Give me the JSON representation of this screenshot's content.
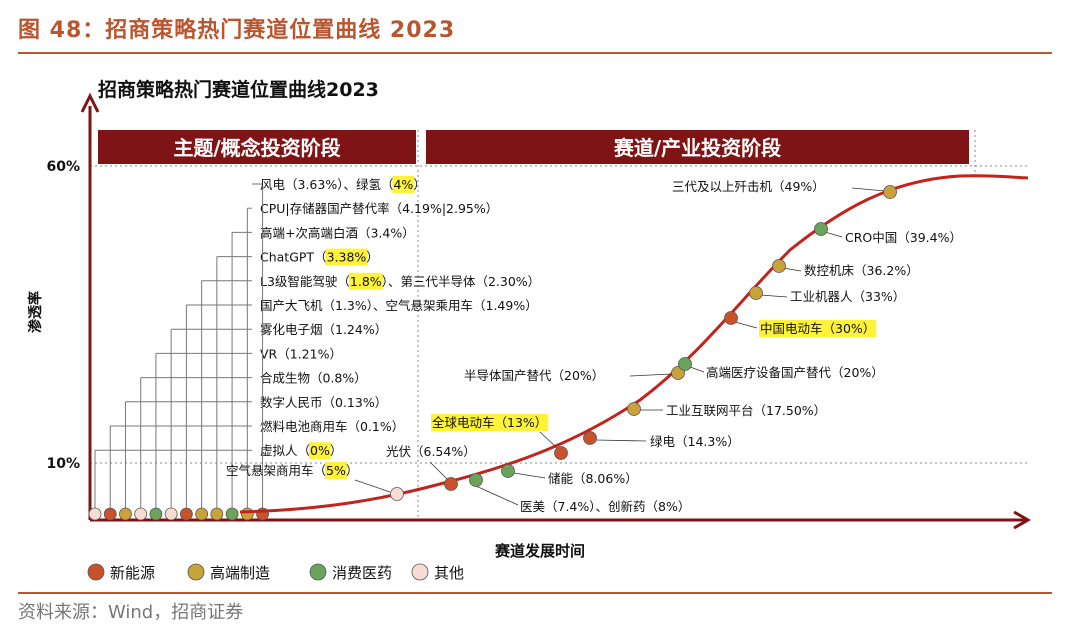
{
  "figure_title": "图 48：招商策略热门赛道位置曲线 2023",
  "source": "资料来源：Wind，招商证券",
  "colors": {
    "brand": "#b9562f",
    "banner": "#7f1416",
    "axis": "#7f1416",
    "curve": "#c2241d",
    "highlight": "#fff23a",
    "new_energy": "#c8532a",
    "high_end": "#c9a33a",
    "consumer_med": "#6aa35a",
    "other": "#f7dcd6"
  },
  "chart_data": {
    "type": "scatter",
    "title": "招商策略热门赛道位置曲线2023",
    "xlabel": "赛道发展时间",
    "ylabel": "渗透率",
    "y_ticks": [
      "60%",
      "10%"
    ],
    "phases": [
      "主题/概念投资阶段",
      "赛道/产业投资阶段"
    ],
    "legend": [
      {
        "key": "new_energy",
        "label": "新能源"
      },
      {
        "key": "high_end",
        "label": "高端制造"
      },
      {
        "key": "consumer_med",
        "label": "消费医药"
      },
      {
        "key": "other",
        "label": "其他"
      }
    ],
    "theme_items": [
      {
        "label": "风电（3.63%）、绿氢（",
        "hl": "4%",
        "after": "）",
        "cat": "new_energy"
      },
      {
        "label": "CPU|存储器国产替代率（4.19%|2.95%）",
        "hl": "",
        "after": "",
        "cat": "high_end"
      },
      {
        "label": "高端+次高端白酒（3.4%）",
        "hl": "",
        "after": "",
        "cat": "consumer_med"
      },
      {
        "label": "ChatGPT（",
        "hl": "3.38%",
        "after": "）",
        "cat": "high_end"
      },
      {
        "label": "L3级智能驾驶（",
        "hl": "1.8%",
        "after": "）、第三代半导体（2.30%）",
        "cat": "high_end"
      },
      {
        "label": "国产大飞机（1.3%）、空气悬架乘用车（1.49%）",
        "hl": "",
        "after": "",
        "cat": "new_energy"
      },
      {
        "label": "雾化电子烟（1.24%）",
        "hl": "",
        "after": "",
        "cat": "other"
      },
      {
        "label": "VR（1.21%）",
        "hl": "",
        "after": "",
        "cat": "consumer_med"
      },
      {
        "label": "合成生物（0.8%）",
        "hl": "",
        "after": "",
        "cat": "other"
      },
      {
        "label": "数字人民币（0.13%）",
        "hl": "",
        "after": "",
        "cat": "high_end"
      },
      {
        "label": "燃料电池商用车（0.1%）",
        "hl": "",
        "after": "",
        "cat": "new_energy"
      },
      {
        "label": "虚拟人（",
        "hl": "0%",
        "after": "）",
        "cat": "other"
      }
    ],
    "curve_points": [
      {
        "label": "空气悬架商用车（",
        "hl": "5%",
        "after": "）",
        "cat": "other"
      },
      {
        "label": "光伏（6.54%）",
        "hl": "",
        "after": "",
        "cat": "new_energy"
      },
      {
        "label": "医美（7.4%）、创新药（8%）",
        "hl": "",
        "after": "",
        "cat": "consumer_med"
      },
      {
        "label": "储能（8.06%）",
        "hl": "",
        "after": "",
        "cat": "consumer_med"
      },
      {
        "label": "",
        "hl": "全球电动车（13%）",
        "after": "",
        "cat": "new_energy"
      },
      {
        "label": "绿电（14.3%）",
        "hl": "",
        "after": "",
        "cat": "new_energy"
      },
      {
        "label": "工业互联网平台（17.50%）",
        "hl": "",
        "after": "",
        "cat": "high_end"
      },
      {
        "label": "半导体国产替代（20%）",
        "hl": "",
        "after": "",
        "cat": "high_end"
      },
      {
        "label": "高端医疗设备国产替代（20%）",
        "hl": "",
        "after": "",
        "cat": "consumer_med"
      },
      {
        "label": "",
        "hl": "中国电动车（30%）",
        "after": "",
        "cat": "new_energy"
      },
      {
        "label": "工业机器人（33%）",
        "hl": "",
        "after": "",
        "cat": "high_end"
      },
      {
        "label": "数控机床（36.2%）",
        "hl": "",
        "after": "",
        "cat": "high_end"
      },
      {
        "label": "CRO中国（39.4%）",
        "hl": "",
        "after": "",
        "cat": "consumer_med"
      },
      {
        "label": "三代及以上歼击机（49%）",
        "hl": "",
        "after": "",
        "cat": "high_end"
      }
    ]
  }
}
